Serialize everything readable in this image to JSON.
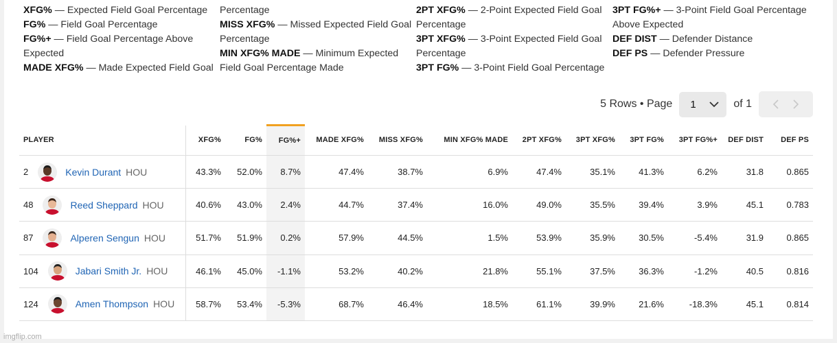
{
  "glossary": [
    [
      {
        "term": "XFG%",
        "desc": "Expected Field Goal Percentage"
      },
      {
        "term": "FG%",
        "desc": "Field Goal Percentage"
      },
      {
        "term": "FG%+",
        "desc": "Field Goal Percentage Above Expected"
      },
      {
        "term": "MADE XFG%",
        "desc": "Made Expected Field Goal"
      }
    ],
    [
      {
        "term": "",
        "desc": "Percentage"
      },
      {
        "term": "MISS XFG%",
        "desc": "Missed Expected Field Goal Percentage"
      },
      {
        "term": "MIN XFG% MADE",
        "desc": "Minimum Expected Field Goal Percentage Made"
      }
    ],
    [
      {
        "term": "2PT XFG%",
        "desc": "2-Point Expected Field Goal Percentage"
      },
      {
        "term": "3PT XFG%",
        "desc": "3-Point Expected Field Goal Percentage"
      },
      {
        "term": "3PT FG%",
        "desc": "3-Point Field Goal Percentage"
      }
    ],
    [
      {
        "term": "3PT FG%+",
        "desc": "3-Point Field Goal Percentage Above Expected"
      },
      {
        "term": "DEF DIST",
        "desc": "Defender Distance"
      },
      {
        "term": "DEF PS",
        "desc": "Defender Pressure"
      }
    ]
  ],
  "pager": {
    "rows_label": "5 Rows • Page",
    "page": "1",
    "of_label": "of 1"
  },
  "table": {
    "headers": [
      "PLAYER",
      "XFG%",
      "FG%",
      "FG%+",
      "MADE XFG%",
      "MISS XFG%",
      "MIN XFG% MADE",
      "2PT XFG%",
      "3PT XFG%",
      "3PT FG%",
      "3PT FG%+",
      "DEF DIST",
      "DEF PS"
    ],
    "rows": [
      {
        "num": "2",
        "name": "Kevin Durant",
        "team": "HOU",
        "vals": [
          "43.3%",
          "52.0%",
          "8.7%",
          "47.4%",
          "38.7%",
          "6.9%",
          "47.4%",
          "35.1%",
          "41.3%",
          "6.2%",
          "31.8",
          "0.865"
        ]
      },
      {
        "num": "48",
        "name": "Reed Sheppard",
        "team": "HOU",
        "vals": [
          "40.6%",
          "43.0%",
          "2.4%",
          "44.7%",
          "37.4%",
          "16.0%",
          "49.0%",
          "35.5%",
          "39.4%",
          "3.9%",
          "45.1",
          "0.783"
        ]
      },
      {
        "num": "87",
        "name": "Alperen Sengun",
        "team": "HOU",
        "vals": [
          "51.7%",
          "51.9%",
          "0.2%",
          "57.9%",
          "44.5%",
          "1.5%",
          "53.9%",
          "35.9%",
          "30.5%",
          "-5.4%",
          "31.9",
          "0.865"
        ]
      },
      {
        "num": "104",
        "name": "Jabari Smith Jr.",
        "team": "HOU",
        "vals": [
          "46.1%",
          "45.0%",
          "-1.1%",
          "53.2%",
          "40.2%",
          "21.8%",
          "55.1%",
          "37.5%",
          "36.3%",
          "-1.2%",
          "40.5",
          "0.816"
        ]
      },
      {
        "num": "124",
        "name": "Amen Thompson",
        "team": "HOU",
        "vals": [
          "58.7%",
          "53.4%",
          "-5.3%",
          "68.7%",
          "46.4%",
          "18.5%",
          "61.1%",
          "39.9%",
          "21.6%",
          "-18.3%",
          "45.1",
          "0.814"
        ]
      }
    ]
  },
  "watermark": "imgflip.com",
  "colors": {
    "accent": "#f0a020",
    "link": "#1f64b4",
    "jersey": "#c8102e"
  }
}
